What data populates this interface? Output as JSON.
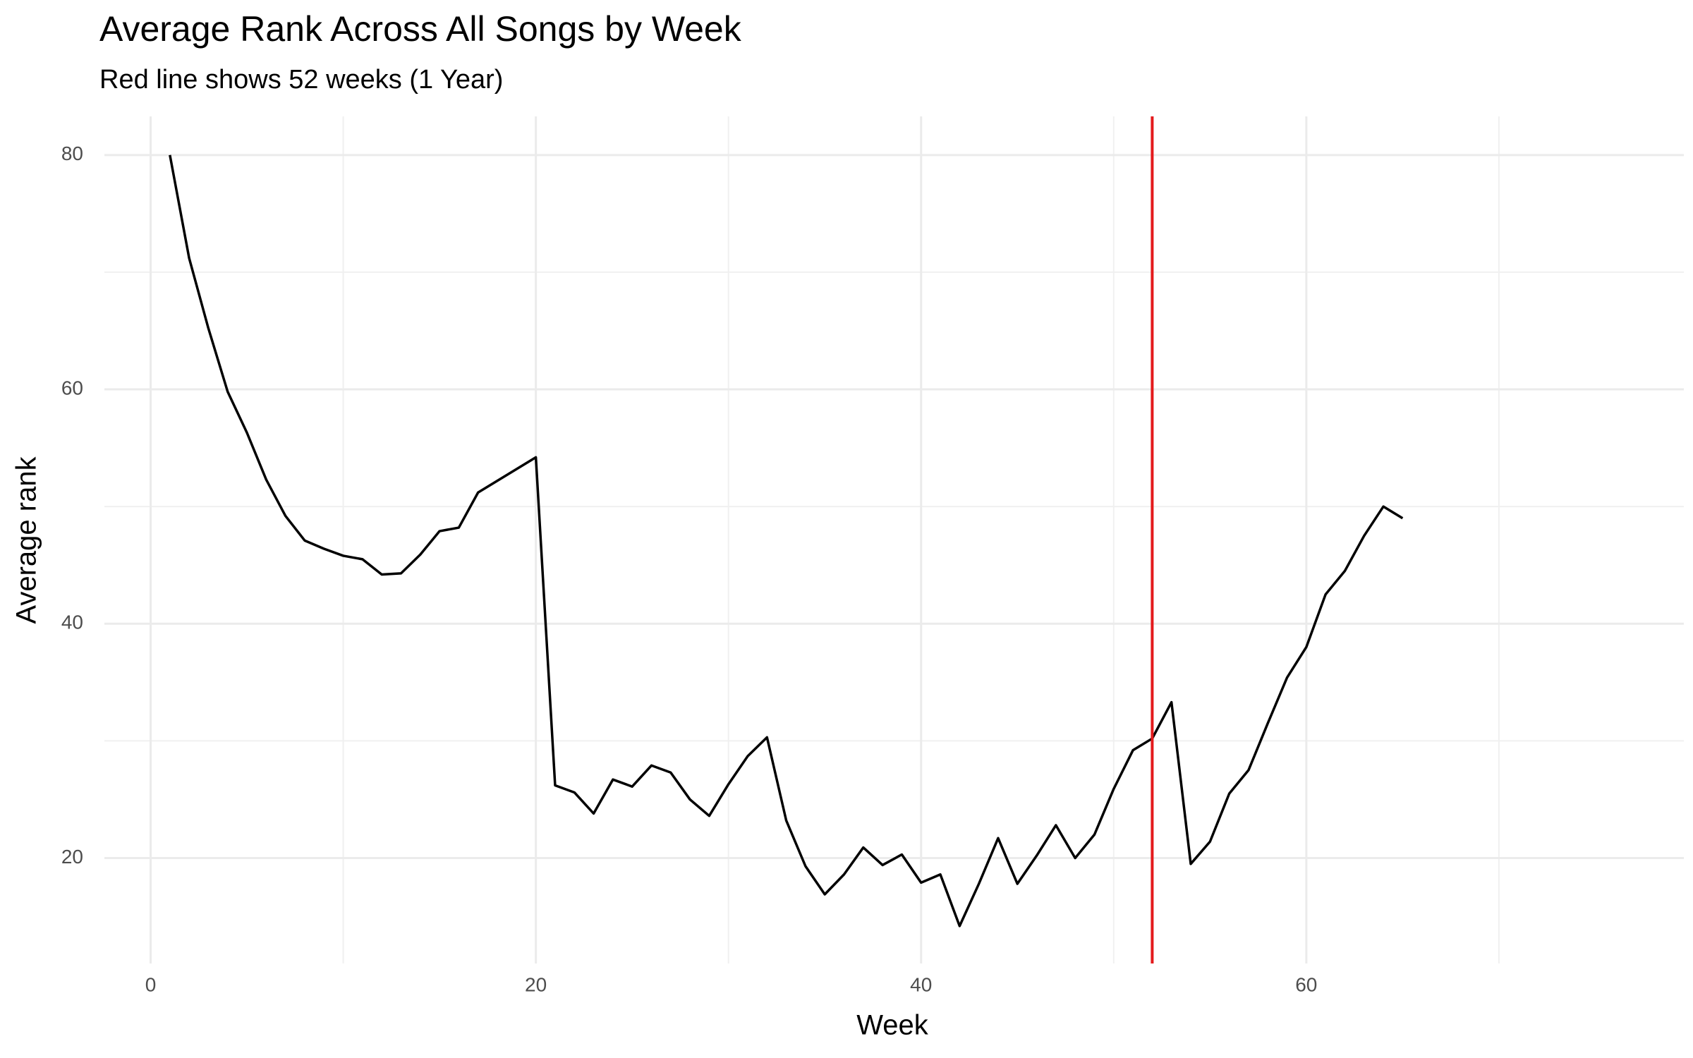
{
  "chart_data": {
    "type": "line",
    "title": "Average Rank Across All Songs by Week",
    "subtitle": "Red line shows 52 weeks (1 Year)",
    "x_label": "Week",
    "y_label": "Average rank",
    "x": [
      1,
      2,
      3,
      4,
      5,
      6,
      7,
      8,
      9,
      10,
      11,
      12,
      13,
      14,
      15,
      16,
      17,
      18,
      19,
      20,
      21,
      22,
      23,
      24,
      25,
      26,
      27,
      28,
      29,
      30,
      31,
      32,
      33,
      34,
      35,
      36,
      37,
      38,
      39,
      40,
      41,
      42,
      43,
      44,
      45,
      46,
      47,
      48,
      49,
      50,
      51,
      52,
      53,
      54,
      55,
      56,
      57,
      58,
      59,
      60,
      61,
      62,
      63,
      64,
      65
    ],
    "series": [
      {
        "name": "Average rank",
        "color": "#000000",
        "values": [
          80,
          71.2,
          65.2,
          59.8,
          56.3,
          52.3,
          49.2,
          47.1,
          46.4,
          45.8,
          45.5,
          44.2,
          44.3,
          45.9,
          47.9,
          48.2,
          51.2,
          52.2,
          53.2,
          54.2,
          26.2,
          25.6,
          23.8,
          26.7,
          26.1,
          27.9,
          27.3,
          25.0,
          23.6,
          26.3,
          28.7,
          30.3,
          23.2,
          19.3,
          16.9,
          18.6,
          20.9,
          19.4,
          20.3,
          17.9,
          18.6,
          14.2,
          17.8,
          21.7,
          17.8,
          20.2,
          22.8,
          20.0,
          22.0,
          25.9,
          29.2,
          30.2,
          33.3,
          19.5,
          21.4,
          25.5,
          27.5,
          31.5,
          35.4,
          38.0,
          42.5,
          44.5,
          47.5,
          50.0,
          49.0
        ]
      }
    ],
    "xlim": [
      -2.4,
      79.6
    ],
    "ylim": [
      11,
      83.3
    ],
    "xticks": [
      0,
      20,
      40,
      60
    ],
    "yticks": [
      20,
      40,
      60,
      80
    ],
    "x_minor_grid": [
      10,
      30,
      50,
      70
    ],
    "y_minor_grid": [
      30,
      50,
      70
    ],
    "grid": true,
    "vline": {
      "x": 52,
      "color": "#e41a1c"
    }
  }
}
